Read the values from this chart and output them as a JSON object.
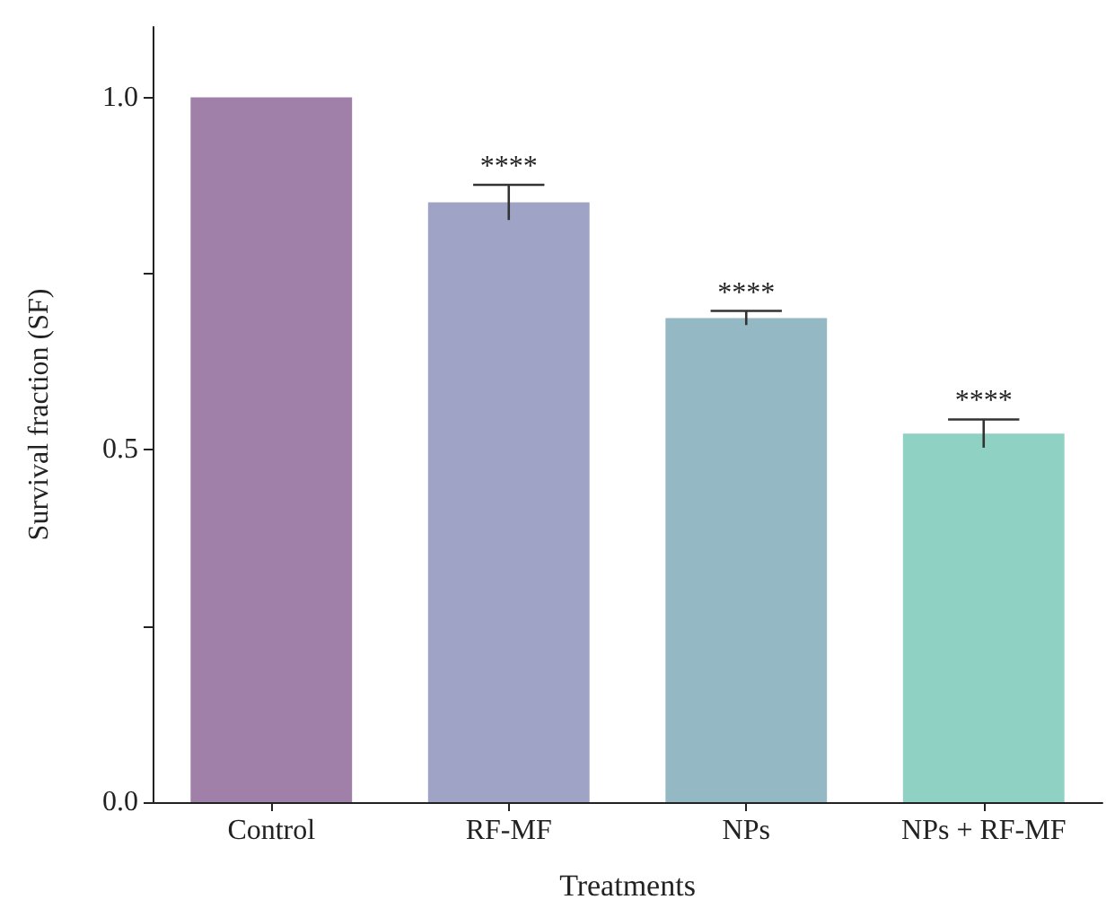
{
  "chart_data": {
    "type": "bar",
    "xlabel": "Treatments",
    "ylabel": "Survival fraction (SF)",
    "categories": [
      "Control",
      "RF-MF",
      "NPs",
      "NPs + RF-MF"
    ],
    "values": [
      1.0,
      0.851,
      0.687,
      0.523
    ],
    "errors": [
      null,
      0.025,
      0.01,
      0.02
    ],
    "colors": [
      "#a07fa8",
      "#9fa3c6",
      "#94b8c4",
      "#8fd1c2"
    ],
    "ylim": [
      0,
      1.1
    ],
    "yticks": [
      {
        "value": 0,
        "label": "0.0"
      },
      {
        "value": 0.25,
        "label": null
      },
      {
        "value": 0.5,
        "label": "0.5"
      },
      {
        "value": 0.75,
        "label": null
      },
      {
        "value": 1,
        "label": "1.0"
      }
    ],
    "annotations": [
      {
        "text": "****",
        "x": "RF-MF",
        "y": 0.876
      },
      {
        "text": "****",
        "x": "NPs",
        "y": 0.697
      },
      {
        "text": "****",
        "x": "NPs + RF-MF",
        "y": 0.543
      }
    ],
    "grid": false
  }
}
